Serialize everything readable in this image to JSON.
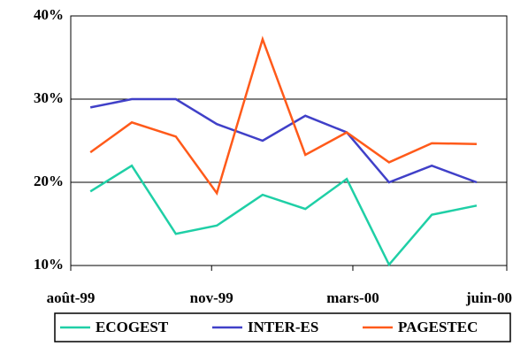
{
  "chart_data": {
    "type": "line",
    "x": [
      0.45,
      1.4,
      2.41,
      3.35,
      4.4,
      5.38,
      6.33,
      7.3,
      8.28,
      9.31
    ],
    "xlim": [
      0,
      10
    ],
    "xticks": [
      {
        "value": 0,
        "label": "août-99"
      },
      {
        "value": 3.23,
        "label": "nov-99"
      },
      {
        "value": 6.47,
        "label": "mars-00"
      },
      {
        "value": 10,
        "label": "juin-00"
      }
    ],
    "ylim": [
      10,
      40
    ],
    "yticks": [
      {
        "value": 10,
        "label": "10%"
      },
      {
        "value": 20,
        "label": "20%"
      },
      {
        "value": 30,
        "label": "30%"
      },
      {
        "value": 40,
        "label": "40%"
      }
    ],
    "grid": true,
    "legend": "bottom",
    "series": [
      {
        "name": "ECOGEST",
        "color": "#1fcfa6",
        "values": [
          18.9,
          22.0,
          13.8,
          14.8,
          18.5,
          16.8,
          20.4,
          10.1,
          16.1,
          17.2
        ]
      },
      {
        "name": "INTER-ES",
        "color": "#4040c8",
        "values": [
          29.0,
          30.0,
          30.0,
          27.0,
          25.0,
          28.0,
          26.0,
          20.0,
          22.0,
          20.0
        ]
      },
      {
        "name": "PAGESTEC",
        "color": "#ff5a1a",
        "values": [
          23.6,
          27.2,
          25.5,
          18.7,
          37.2,
          23.3,
          26.0,
          22.4,
          24.7,
          24.6
        ]
      }
    ]
  }
}
